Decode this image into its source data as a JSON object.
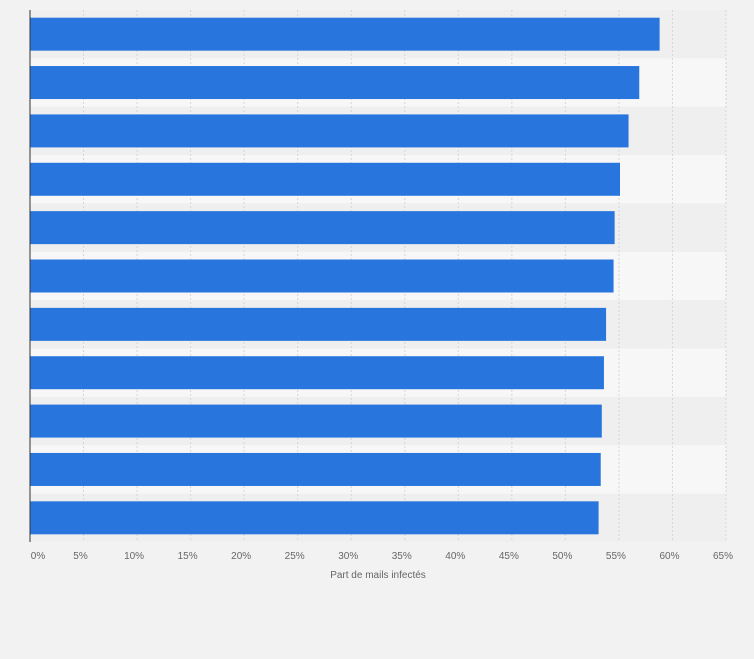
{
  "chart_data": {
    "type": "bar",
    "orientation": "horizontal",
    "title": "",
    "xlabel": "Part de mails infectés",
    "ylabel": "",
    "categories": [
      "",
      "",
      "",
      "",
      "",
      "",
      "",
      "",
      "",
      "",
      ""
    ],
    "values": [
      58.8,
      56.9,
      55.9,
      55.1,
      54.6,
      54.5,
      53.8,
      53.6,
      53.4,
      53.3,
      53.1
    ],
    "xlim": [
      0,
      65
    ],
    "x_ticks": [
      "0%",
      "5%",
      "10%",
      "15%",
      "20%",
      "25%",
      "30%",
      "35%",
      "40%",
      "45%",
      "50%",
      "55%",
      "60%",
      "65%"
    ],
    "grid": true,
    "legend": "none",
    "colors": {
      "bar": "#2876dd",
      "band_light": "#f7f7f7",
      "band_dark": "#efefef",
      "gridline": "#d6d6d6",
      "axis": "#333333",
      "background": "#f2f2f2"
    }
  }
}
